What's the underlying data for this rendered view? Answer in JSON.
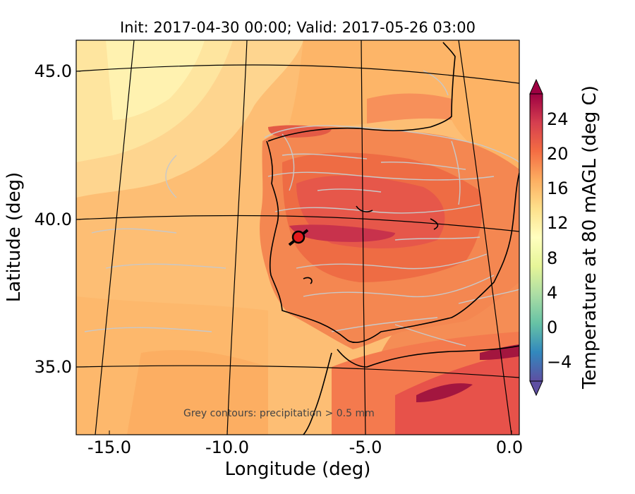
{
  "title": "Init: 2017-04-30 00:00; Valid: 2017-05-26 03:00",
  "xlabel": "Longitude (deg)",
  "ylabel": "Latitude (deg)",
  "colorbar_label": "Temperature at 80 mAGL (deg C)",
  "annotation": "Grey contours: precipitation > 0.5 mm",
  "x_ticks": [
    "-15.0",
    "-10.0",
    "-5.0",
    "0.0"
  ],
  "y_ticks": [
    "45.0",
    "40.0",
    "35.0"
  ],
  "colorbar_ticks": [
    "24",
    "20",
    "16",
    "12",
    "8",
    "4",
    "0",
    "−4"
  ],
  "marker": {
    "lon": -7.7,
    "lat": 39.35,
    "color": "#e41a1c"
  },
  "map_extent": {
    "lon": [
      -16,
      0
    ],
    "lat": [
      33,
      46
    ]
  },
  "colorbar_range": [
    -7,
    27
  ],
  "colormap": "Spectral_r"
}
